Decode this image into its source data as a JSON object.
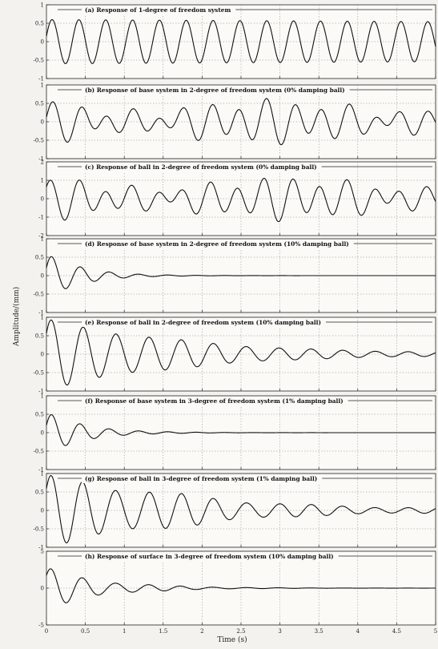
{
  "figure": {
    "ylabel": "Amplitude/(mm)",
    "xlabel": "Time (s)",
    "x_ticks": [
      "0",
      "0.5",
      "1",
      "1.5",
      "2",
      "2.5",
      "3",
      "3.5",
      "4",
      "4.5",
      "5"
    ]
  },
  "chart_data": [
    {
      "type": "line",
      "title": "(a) Response of 1-degree of freedom system",
      "xlim": [
        0,
        5
      ],
      "ylim": [
        -1,
        1
      ],
      "y_ticks": [
        "1",
        "0.5",
        "0",
        "-0.5",
        "-1"
      ],
      "grid": true,
      "series": [
        {
          "A": 0.6,
          "f": 2.9,
          "d": 0.02,
          "A2": 0,
          "f2": 0,
          "p": 0.25
        }
      ]
    },
    {
      "type": "line",
      "title": "(b) Response of base system in 2-degree of freedom system (0% damping ball)",
      "xlim": [
        0,
        5
      ],
      "ylim": [
        -1,
        1
      ],
      "y_ticks": [
        "1",
        "0.5",
        "0",
        "-0.5",
        "-1"
      ],
      "grid": true,
      "series": [
        {
          "A": 0.35,
          "f": 2.9,
          "d": 0.0,
          "A2": 0.3,
          "f2": 2.2,
          "p": 0.2
        }
      ]
    },
    {
      "type": "line",
      "title": "(c) Response of ball in 2-degree of freedom system (0% damping ball)",
      "xlim": [
        0,
        5
      ],
      "ylim": [
        -2,
        2
      ],
      "y_ticks": [
        "2",
        "1",
        "0",
        "-1",
        "-2"
      ],
      "grid": true,
      "series": [
        {
          "A": 0.7,
          "f": 2.9,
          "d": 0.0,
          "A2": 0.55,
          "f2": 2.2,
          "p": 0.6
        }
      ]
    },
    {
      "type": "line",
      "title": "(d) Response of base system in 2-degree of freedom system (10% damping ball)",
      "xlim": [
        0,
        5
      ],
      "ylim": [
        -1,
        1
      ],
      "y_ticks": [
        "1",
        "0.5",
        "0",
        "-0.5",
        "-1"
      ],
      "grid": true,
      "series": [
        {
          "A": 0.55,
          "f": 2.7,
          "d": 2.2,
          "A2": 0.08,
          "f2": 2.8,
          "p": 0.35
        }
      ]
    },
    {
      "type": "line",
      "title": "(e) Response of ball in 2-degree of freedom system (10% damping ball)",
      "xlim": [
        0,
        5
      ],
      "ylim": [
        -1,
        1
      ],
      "y_ticks": [
        "1",
        "0.5",
        "0",
        "-0.5",
        "-1"
      ],
      "grid": true,
      "series": [
        {
          "A": 0.9,
          "f": 2.4,
          "d": 0.55,
          "A2": 0.12,
          "f2": 2.6,
          "p": 0.6
        }
      ]
    },
    {
      "type": "line",
      "title": "(f) Response of base system in 3-degree of freedom system (1% damping ball)",
      "xlim": [
        0,
        5
      ],
      "ylim": [
        -1,
        1
      ],
      "y_ticks": [
        "1",
        "0.5",
        "0",
        "-0.5",
        "-1"
      ],
      "grid": true,
      "series": [
        {
          "A": 0.5,
          "f": 2.7,
          "d": 2.0,
          "A2": 0.1,
          "f2": 2.9,
          "p": 0.35
        }
      ]
    },
    {
      "type": "line",
      "title": "(g) Response of ball in 3-degree of freedom system (1% damping ball)",
      "xlim": [
        0,
        5
      ],
      "ylim": [
        -1,
        1
      ],
      "y_ticks": [
        "1",
        "0.5",
        "0",
        "-0.5",
        "-1"
      ],
      "grid": true,
      "series": [
        {
          "A": 0.85,
          "f": 2.4,
          "d": 0.5,
          "A2": 0.25,
          "f2": 2.6,
          "p": 0.6
        }
      ]
    },
    {
      "type": "line",
      "title": "(h) Response of surface in 3-degree of freedom system (10% damping ball)",
      "xlim": [
        0,
        5
      ],
      "ylim": [
        -5,
        5
      ],
      "y_ticks": [
        "5",
        "0",
        "-5"
      ],
      "grid": true,
      "series": [
        {
          "A": 2.5,
          "f": 2.4,
          "d": 1.4,
          "A2": 0.7,
          "f2": 2.7,
          "p": 0.6
        }
      ]
    }
  ]
}
